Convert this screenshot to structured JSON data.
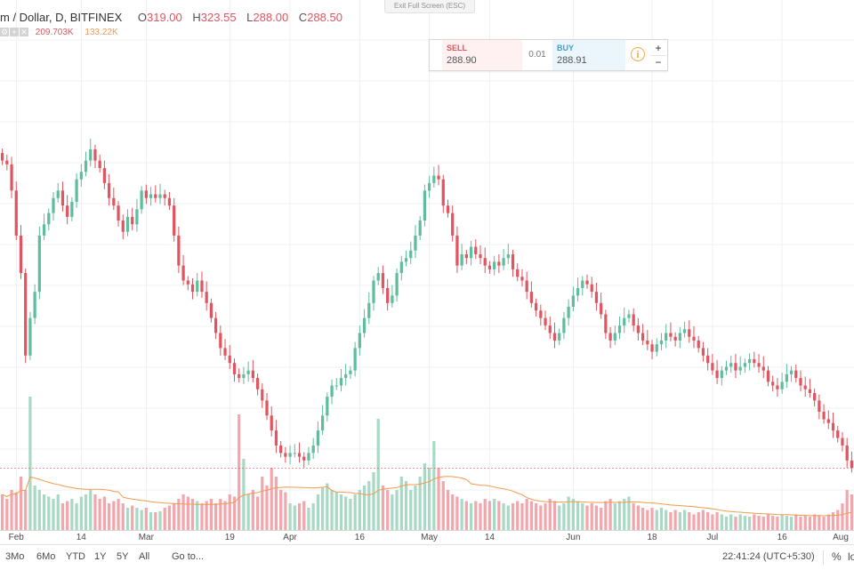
{
  "header": {
    "exit_fullscreen": "Exit Full Screen (ESC)",
    "symbol": "m / Dollar, D, BITFINEX",
    "ohlc": [
      {
        "label": "O",
        "value": "319.00"
      },
      {
        "label": "H",
        "value": "323.55"
      },
      {
        "label": "L",
        "value": "288.00"
      },
      {
        "label": "C",
        "value": "288.50"
      }
    ],
    "volume_value": "209.703K",
    "volume_ma_value": "133.22K"
  },
  "trade": {
    "sell_label": "SELL",
    "sell_price": "288.90",
    "spread": "0.01",
    "buy_label": "BUY",
    "buy_price": "288.91",
    "info_glyph": "i",
    "plus": "+",
    "minus": "−"
  },
  "time_axis": {
    "ticks": [
      {
        "label": "Feb",
        "day": 3
      },
      {
        "label": "14",
        "day": 17
      },
      {
        "label": "Mar",
        "day": 31
      },
      {
        "label": "19",
        "day": 49
      },
      {
        "label": "Apr",
        "day": 62
      },
      {
        "label": "16",
        "day": 77
      },
      {
        "label": "May",
        "day": 92
      },
      {
        "label": "14",
        "day": 105
      },
      {
        "label": "Jun",
        "day": 123
      },
      {
        "label": "18",
        "day": 140
      },
      {
        "label": "Jul",
        "day": 153
      },
      {
        "label": "16",
        "day": 168
      },
      {
        "label": "Aug",
        "day": 184
      }
    ]
  },
  "bottom": {
    "ranges": [
      "3Mo",
      "6Mo",
      "YTD",
      "1Y",
      "5Y",
      "All"
    ],
    "goto": "Go to...",
    "clock": "22:41:24 (UTC+5:30)",
    "percent": "%",
    "log": "lo"
  },
  "colors": {
    "up": "#5fbc9c",
    "down": "#e0555f",
    "vol_up": "#a9d9c4",
    "vol_down": "#f3a7ad",
    "ma": "#f39a4c",
    "grid": "#eef1f5",
    "accent_buy": "#3a9fd8",
    "accent_sell": "#e0555f"
  },
  "chart_data": {
    "type": "candlestick",
    "candles": [
      {
        "c": 700,
        "v": 8000
      },
      {
        "c": 695,
        "v": 7000
      },
      {
        "c": 660,
        "v": 9000
      },
      {
        "c": 600,
        "v": 8500
      },
      {
        "c": 550,
        "v": 12000
      },
      {
        "c": 440,
        "v": 9000
      },
      {
        "c": 490,
        "v": 30000
      },
      {
        "c": 525,
        "v": 10000
      },
      {
        "c": 600,
        "v": 9000
      },
      {
        "c": 615,
        "v": 8000
      },
      {
        "c": 630,
        "v": 7500
      },
      {
        "c": 650,
        "v": 7000
      },
      {
        "c": 660,
        "v": 8000
      },
      {
        "c": 640,
        "v": 6000
      },
      {
        "c": 625,
        "v": 6500
      },
      {
        "c": 645,
        "v": 7000
      },
      {
        "c": 675,
        "v": 6000
      },
      {
        "c": 685,
        "v": 7500
      },
      {
        "c": 700,
        "v": 8000
      },
      {
        "c": 715,
        "v": 9000
      },
      {
        "c": 700,
        "v": 8000
      },
      {
        "c": 690,
        "v": 7000
      },
      {
        "c": 670,
        "v": 7500
      },
      {
        "c": 650,
        "v": 6000
      },
      {
        "c": 640,
        "v": 6500
      },
      {
        "c": 620,
        "v": 7000
      },
      {
        "c": 605,
        "v": 6000
      },
      {
        "c": 625,
        "v": 5000
      },
      {
        "c": 615,
        "v": 5500
      },
      {
        "c": 635,
        "v": 5000
      },
      {
        "c": 660,
        "v": 4500
      },
      {
        "c": 650,
        "v": 5000
      },
      {
        "c": 655,
        "v": 4000
      },
      {
        "c": 650,
        "v": 4000
      },
      {
        "c": 655,
        "v": 4200
      },
      {
        "c": 650,
        "v": 5000
      },
      {
        "c": 640,
        "v": 5500
      },
      {
        "c": 600,
        "v": 6000
      },
      {
        "c": 560,
        "v": 7000
      },
      {
        "c": 540,
        "v": 8000
      },
      {
        "c": 535,
        "v": 7500
      },
      {
        "c": 525,
        "v": 7000
      },
      {
        "c": 540,
        "v": 6500
      },
      {
        "c": 525,
        "v": 6000
      },
      {
        "c": 510,
        "v": 6500
      },
      {
        "c": 490,
        "v": 7000
      },
      {
        "c": 470,
        "v": 6000
      },
      {
        "c": 450,
        "v": 7000
      },
      {
        "c": 440,
        "v": 6500
      },
      {
        "c": 430,
        "v": 8000
      },
      {
        "c": 415,
        "v": 7500
      },
      {
        "c": 410,
        "v": 26000
      },
      {
        "c": 415,
        "v": 16000
      },
      {
        "c": 420,
        "v": 8000
      },
      {
        "c": 410,
        "v": 9000
      },
      {
        "c": 395,
        "v": 7500
      },
      {
        "c": 380,
        "v": 12000
      },
      {
        "c": 360,
        "v": 10000
      },
      {
        "c": 340,
        "v": 14000
      },
      {
        "c": 320,
        "v": 12000
      },
      {
        "c": 310,
        "v": 9000
      },
      {
        "c": 305,
        "v": 8500
      },
      {
        "c": 310,
        "v": 6000
      },
      {
        "c": 310,
        "v": 5500
      },
      {
        "c": 305,
        "v": 6000
      },
      {
        "c": 300,
        "v": 6500
      },
      {
        "c": 310,
        "v": 5000
      },
      {
        "c": 320,
        "v": 6000
      },
      {
        "c": 340,
        "v": 8000
      },
      {
        "c": 360,
        "v": 9500
      },
      {
        "c": 385,
        "v": 10500
      },
      {
        "c": 400,
        "v": 9000
      },
      {
        "c": 400,
        "v": 8500
      },
      {
        "c": 410,
        "v": 8000
      },
      {
        "c": 415,
        "v": 7500
      },
      {
        "c": 420,
        "v": 7000
      },
      {
        "c": 450,
        "v": 8000
      },
      {
        "c": 470,
        "v": 9000
      },
      {
        "c": 490,
        "v": 10000
      },
      {
        "c": 510,
        "v": 11000
      },
      {
        "c": 540,
        "v": 13000
      },
      {
        "c": 550,
        "v": 25000
      },
      {
        "c": 530,
        "v": 10000
      },
      {
        "c": 510,
        "v": 9000
      },
      {
        "c": 520,
        "v": 8000
      },
      {
        "c": 550,
        "v": 9000
      },
      {
        "c": 565,
        "v": 12000
      },
      {
        "c": 570,
        "v": 11000
      },
      {
        "c": 580,
        "v": 9000
      },
      {
        "c": 600,
        "v": 10000
      },
      {
        "c": 620,
        "v": 12000
      },
      {
        "c": 660,
        "v": 15000
      },
      {
        "c": 670,
        "v": 14000
      },
      {
        "c": 680,
        "v": 20000
      },
      {
        "c": 675,
        "v": 14000
      },
      {
        "c": 640,
        "v": 11000
      },
      {
        "c": 630,
        "v": 9000
      },
      {
        "c": 600,
        "v": 8000
      },
      {
        "c": 560,
        "v": 7500
      },
      {
        "c": 575,
        "v": 7000
      },
      {
        "c": 570,
        "v": 6500
      },
      {
        "c": 585,
        "v": 6000
      },
      {
        "c": 575,
        "v": 6500
      },
      {
        "c": 570,
        "v": 6000
      },
      {
        "c": 560,
        "v": 7000
      },
      {
        "c": 555,
        "v": 6500
      },
      {
        "c": 565,
        "v": 7000
      },
      {
        "c": 560,
        "v": 6500
      },
      {
        "c": 570,
        "v": 6000
      },
      {
        "c": 575,
        "v": 5500
      },
      {
        "c": 555,
        "v": 6000
      },
      {
        "c": 545,
        "v": 6500
      },
      {
        "c": 540,
        "v": 6000
      },
      {
        "c": 525,
        "v": 7000
      },
      {
        "c": 510,
        "v": 6500
      },
      {
        "c": 500,
        "v": 6000
      },
      {
        "c": 490,
        "v": 5500
      },
      {
        "c": 480,
        "v": 6000
      },
      {
        "c": 470,
        "v": 7000
      },
      {
        "c": 460,
        "v": 6500
      },
      {
        "c": 470,
        "v": 5500
      },
      {
        "c": 490,
        "v": 6000
      },
      {
        "c": 505,
        "v": 7500
      },
      {
        "c": 520,
        "v": 7000
      },
      {
        "c": 530,
        "v": 6500
      },
      {
        "c": 540,
        "v": 6000
      },
      {
        "c": 535,
        "v": 5500
      },
      {
        "c": 525,
        "v": 6000
      },
      {
        "c": 510,
        "v": 5500
      },
      {
        "c": 495,
        "v": 5000
      },
      {
        "c": 470,
        "v": 6500
      },
      {
        "c": 460,
        "v": 7000
      },
      {
        "c": 470,
        "v": 6000
      },
      {
        "c": 480,
        "v": 6500
      },
      {
        "c": 490,
        "v": 7000
      },
      {
        "c": 495,
        "v": 7500
      },
      {
        "c": 480,
        "v": 6000
      },
      {
        "c": 470,
        "v": 5500
      },
      {
        "c": 460,
        "v": 5000
      },
      {
        "c": 455,
        "v": 4500
      },
      {
        "c": 445,
        "v": 5000
      },
      {
        "c": 455,
        "v": 4500
      },
      {
        "c": 460,
        "v": 5000
      },
      {
        "c": 470,
        "v": 4500
      },
      {
        "c": 465,
        "v": 4000
      },
      {
        "c": 460,
        "v": 4500
      },
      {
        "c": 470,
        "v": 4000
      },
      {
        "c": 475,
        "v": 4500
      },
      {
        "c": 465,
        "v": 4000
      },
      {
        "c": 460,
        "v": 3500
      },
      {
        "c": 450,
        "v": 4000
      },
      {
        "c": 440,
        "v": 4500
      },
      {
        "c": 430,
        "v": 4000
      },
      {
        "c": 420,
        "v": 3500
      },
      {
        "c": 410,
        "v": 4000
      },
      {
        "c": 420,
        "v": 3500
      },
      {
        "c": 425,
        "v": 3000
      },
      {
        "c": 430,
        "v": 3500
      },
      {
        "c": 420,
        "v": 3000
      },
      {
        "c": 425,
        "v": 3500
      },
      {
        "c": 430,
        "v": 3200
      },
      {
        "c": 435,
        "v": 3000
      },
      {
        "c": 430,
        "v": 3500
      },
      {
        "c": 425,
        "v": 3200
      },
      {
        "c": 420,
        "v": 3000
      },
      {
        "c": 405,
        "v": 3500
      },
      {
        "c": 400,
        "v": 3200
      },
      {
        "c": 395,
        "v": 3000
      },
      {
        "c": 405,
        "v": 3500
      },
      {
        "c": 415,
        "v": 3200
      },
      {
        "c": 420,
        "v": 3000
      },
      {
        "c": 410,
        "v": 3500
      },
      {
        "c": 400,
        "v": 3000
      },
      {
        "c": 395,
        "v": 3200
      },
      {
        "c": 390,
        "v": 3000
      },
      {
        "c": 380,
        "v": 3500
      },
      {
        "c": 365,
        "v": 3200
      },
      {
        "c": 355,
        "v": 3000
      },
      {
        "c": 350,
        "v": 3500
      },
      {
        "c": 340,
        "v": 4000
      },
      {
        "c": 330,
        "v": 4500
      },
      {
        "c": 320,
        "v": 6000
      },
      {
        "c": 300,
        "v": 9000
      },
      {
        "c": 290,
        "v": 8000
      }
    ]
  }
}
